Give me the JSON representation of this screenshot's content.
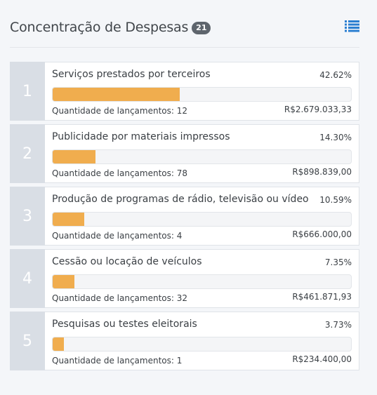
{
  "header": {
    "title": "Concentração de Despesas",
    "count": "21"
  },
  "colors": {
    "bar_fill": "#f0ad4e",
    "rank_bg": "#d9dee5",
    "icon": "#2b7fd1"
  },
  "items": [
    {
      "rank": "1",
      "name": "Serviços prestados por terceiros",
      "percent_label": "42.62%",
      "percent": 42.62,
      "qty_label": "Quantidade de lançamentos: 12",
      "amount": "R$2.679.033,33"
    },
    {
      "rank": "2",
      "name": "Publicidade por materiais impressos",
      "percent_label": "14.30%",
      "percent": 14.3,
      "qty_label": "Quantidade de lançamentos: 78",
      "amount": "R$898.839,00"
    },
    {
      "rank": "3",
      "name": "Produção de programas de rádio, televisão ou vídeo",
      "percent_label": "10.59%",
      "percent": 10.59,
      "qty_label": "Quantidade de lançamentos: 4",
      "amount": "R$666.000,00"
    },
    {
      "rank": "4",
      "name": "Cessão ou locação de veículos",
      "percent_label": "7.35%",
      "percent": 7.35,
      "qty_label": "Quantidade de lançamentos: 32",
      "amount": "R$461.871,93"
    },
    {
      "rank": "5",
      "name": "Pesquisas ou testes eleitorais",
      "percent_label": "3.73%",
      "percent": 3.73,
      "qty_label": "Quantidade de lançamentos: 1",
      "amount": "R$234.400,00"
    }
  ]
}
